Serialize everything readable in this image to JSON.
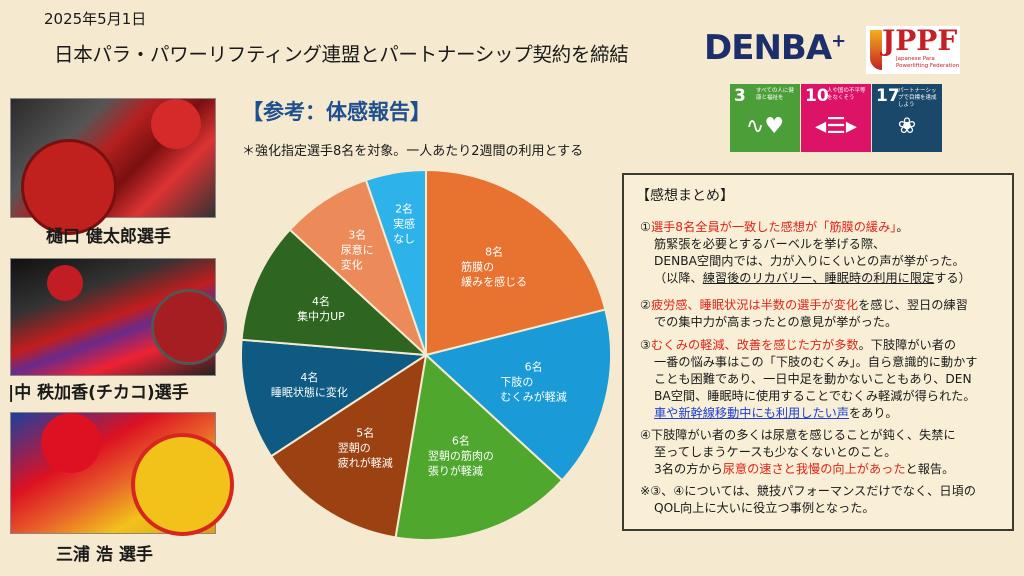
{
  "header": {
    "date": "2025年5月1日",
    "title": "日本パラ・パワーリフティング連盟とパートナーシップ契約を締結",
    "logos": {
      "denba": "DENBA",
      "denba_sup": "+",
      "jppf": "JPPF",
      "jppf_sub": "Japanese Para Powerlifting Federation"
    },
    "sdgs": [
      {
        "num": "3",
        "text": "すべての人に健康と福祉を",
        "icon": "heartbeat-icon",
        "color": "#4c9f38"
      },
      {
        "num": "10",
        "text": "人や国の不平等をなくそう",
        "icon": "equality-arrows-icon",
        "color": "#dd1367"
      },
      {
        "num": "17",
        "text": "パートナーシップで目標を達成しよう",
        "icon": "rings-flower-icon",
        "color": "#19486a"
      }
    ]
  },
  "athletes": [
    {
      "caption": "樋口 健太郎選手"
    },
    {
      "caption": "|中 秩加香(チカコ)選手"
    },
    {
      "caption": "三浦 浩  選手"
    }
  ],
  "reference": {
    "title": "【参考：体感報告】",
    "note": "＊強化指定選手8名を対象。一人あたり2週間の利用とする"
  },
  "chart_data": {
    "type": "pie",
    "start": "12 o'clock, clockwise",
    "slices": [
      {
        "count": "8名",
        "value": 8,
        "label": "筋膜の\n緩みを感じる",
        "color": "#e87331"
      },
      {
        "count": "6名",
        "value": 6,
        "label": "下肢の\nむくみが軽減",
        "color": "#1a9bd7"
      },
      {
        "count": "6名",
        "value": 6,
        "label": "翌朝の筋肉の\n張りが軽減",
        "color": "#4fa72e"
      },
      {
        "count": "5名",
        "value": 5,
        "label": "翌朝の\n疲れが軽減",
        "color": "#9c4212"
      },
      {
        "count": "4名",
        "value": 4,
        "label": "睡眠状態に変化",
        "color": "#0e5a82"
      },
      {
        "count": "4名",
        "value": 4,
        "label": "集中力UP",
        "color": "#2e6520"
      },
      {
        "count": "3名",
        "value": 3,
        "label": "尿意に\n変化",
        "color": "#ec8a5a"
      },
      {
        "count": "2名",
        "value": 2,
        "label": "実感\nなし",
        "color": "#2eb2ea"
      }
    ]
  },
  "summary": {
    "title": "【感想まとめ】",
    "paragraphs": [
      {
        "lines": [
          [
            {
              "t": "①",
              "s": ""
            },
            {
              "t": "選手8名全員が一致した感想が「筋膜の緩み」",
              "s": "red"
            },
            {
              "t": "。",
              "s": ""
            }
          ],
          [
            {
              "t": "筋緊張を必要とするバーベルを挙げる際、",
              "s": "indent"
            }
          ],
          [
            {
              "t": "DENBA空間内では、力が入りにくいとの声が挙がった。",
              "s": "indent"
            }
          ],
          [
            {
              "t": "（以降、",
              "s": "indent"
            },
            {
              "t": "練習後のリカバリー、睡眠時の利用に限定",
              "s": "ul"
            },
            {
              "t": "する）",
              "s": ""
            }
          ]
        ]
      },
      {
        "lines": [
          [
            {
              "t": "②",
              "s": ""
            },
            {
              "t": "疲労感、睡眠状況は半数の選手が変化",
              "s": "red"
            },
            {
              "t": "を感じ、翌日の練習",
              "s": ""
            }
          ],
          [
            {
              "t": "での集中力が高まったとの意見が挙がった。",
              "s": "indent"
            }
          ]
        ]
      },
      {
        "lines": [
          [
            {
              "t": "③",
              "s": ""
            },
            {
              "t": "むくみの軽減、改善を感じた方が多数",
              "s": "red"
            },
            {
              "t": "。下肢障がい者の",
              "s": ""
            }
          ],
          [
            {
              "t": "一番の悩み事はこの「下肢のむくみ」。自ら意識的に動かす",
              "s": "indent"
            }
          ],
          [
            {
              "t": "ことも困難であり、一日中足を動かないこともあり、DEN",
              "s": "indent"
            }
          ],
          [
            {
              "t": "BA空間、睡眠時に使用することでむくみ軽減が得られた。",
              "s": "indent"
            }
          ],
          [
            {
              "t": "車や新幹線移動中にも利用したい声",
              "s": "blue indent"
            },
            {
              "t": "をあり。",
              "s": ""
            }
          ]
        ]
      },
      {
        "lines": [
          [
            {
              "t": "④下肢障がい者の多くは尿意を感じることが鈍く、失禁に",
              "s": ""
            }
          ],
          [
            {
              "t": "至ってしまうケースも少なくないとのこと。",
              "s": "indent"
            }
          ],
          [
            {
              "t": "3名の方から",
              "s": "indent"
            },
            {
              "t": "尿意の速さと我慢の向上があった",
              "s": "red"
            },
            {
              "t": "と報告。",
              "s": ""
            }
          ]
        ]
      },
      {
        "lines": [
          [
            {
              "t": "※③、④については、競技パフォーマンスだけでなく、日頃の",
              "s": ""
            }
          ],
          [
            {
              "t": "QOL向上に大いに役立つ事例となった。",
              "s": "indent"
            }
          ]
        ]
      }
    ]
  }
}
